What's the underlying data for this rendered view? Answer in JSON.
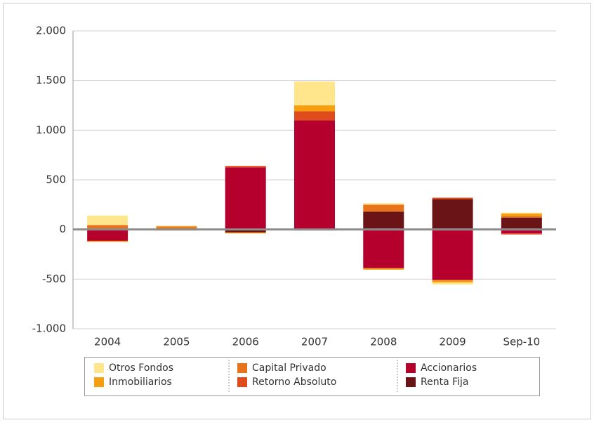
{
  "chart_data": {
    "type": "stacked-bar",
    "categories": [
      "2004",
      "2005",
      "2006",
      "2007",
      "2008",
      "2009",
      "Sep-10"
    ],
    "series": [
      {
        "name": "Otros Fondos",
        "color": "#ffe68c",
        "values": [
          95,
          0,
          0,
          240,
          15,
          -20,
          10
        ]
      },
      {
        "name": "Inmobiliarios",
        "color": "#f5a010",
        "values": [
          -10,
          10,
          -10,
          60,
          -15,
          -25,
          25
        ]
      },
      {
        "name": "Capital Privado",
        "color": "#e8731a",
        "values": [
          45,
          25,
          0,
          0,
          70,
          0,
          15
        ]
      },
      {
        "name": "Retorno Absoluto",
        "color": "#e04b1b",
        "values": [
          0,
          -10,
          15,
          90,
          0,
          15,
          -10
        ]
      },
      {
        "name": "Accionarios",
        "color": "#b5002e",
        "values": [
          -115,
          0,
          625,
          1100,
          -390,
          -510,
          -40
        ]
      },
      {
        "name": "Renta Fija",
        "color": "#6b1418",
        "values": [
          0,
          0,
          -30,
          -10,
          180,
          305,
          120
        ]
      }
    ],
    "ylim": [
      -1000,
      2000
    ],
    "yticks": [
      {
        "value": -1000,
        "label": "-1.000"
      },
      -500,
      0,
      500,
      {
        "value": 1000,
        "label": "1.000"
      },
      {
        "value": 1500,
        "label": "1.500"
      },
      {
        "value": 2000,
        "label": "2.000"
      }
    ],
    "grid": true
  }
}
